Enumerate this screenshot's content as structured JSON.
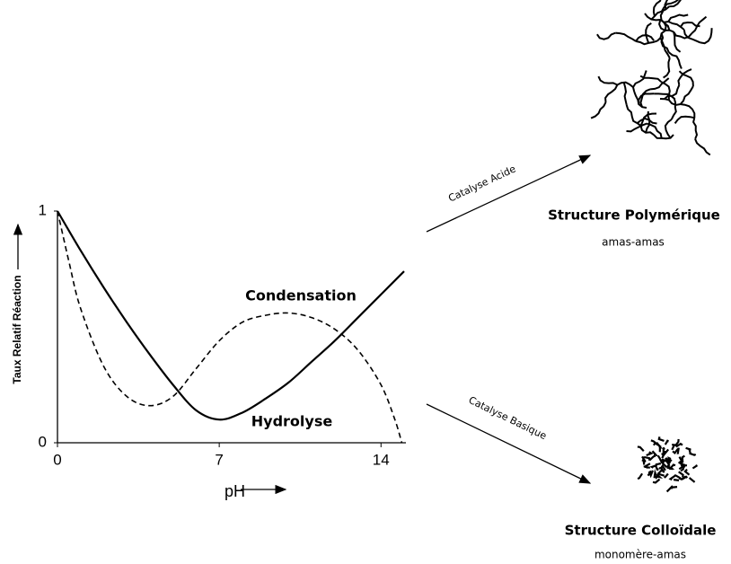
{
  "chart_data": {
    "type": "line",
    "xlabel": "pH",
    "ylabel": "Taux Relatif Réaction",
    "xlim": [
      0,
      15
    ],
    "ylim": [
      0,
      1
    ],
    "xticks": [
      0,
      7,
      14
    ],
    "yticks": [
      0,
      1
    ],
    "series": [
      {
        "name": "Hydrolyse",
        "color": "#000000",
        "dash": false,
        "x": [
          0,
          1,
          2,
          3,
          4,
          5,
          6,
          7,
          8,
          9,
          10,
          11,
          12,
          13,
          14,
          15
        ],
        "values": [
          1,
          0.83,
          0.67,
          0.52,
          0.38,
          0.25,
          0.14,
          0.1,
          0.13,
          0.19,
          0.26,
          0.35,
          0.44,
          0.54,
          0.64,
          0.74
        ]
      },
      {
        "name": "Condensation",
        "color": "#000000",
        "dash": true,
        "x": [
          0,
          0.5,
          1,
          2,
          3,
          4,
          5,
          6,
          7,
          8,
          9,
          10,
          11,
          12,
          13,
          14,
          14.6,
          14.9
        ],
        "values": [
          1,
          0.78,
          0.58,
          0.33,
          0.2,
          0.16,
          0.2,
          0.32,
          0.44,
          0.52,
          0.55,
          0.56,
          0.54,
          0.49,
          0.4,
          0.25,
          0.1,
          0
        ]
      }
    ]
  },
  "diagram": {
    "arrows": [
      {
        "label": "Catalyse Acide"
      },
      {
        "label": "Catalyse Basique"
      }
    ],
    "structures": [
      {
        "title": "Structure Polymérique",
        "subtitle": "amas-amas"
      },
      {
        "title": "Structure Colloïdale",
        "subtitle": "monomère-amas"
      }
    ]
  }
}
